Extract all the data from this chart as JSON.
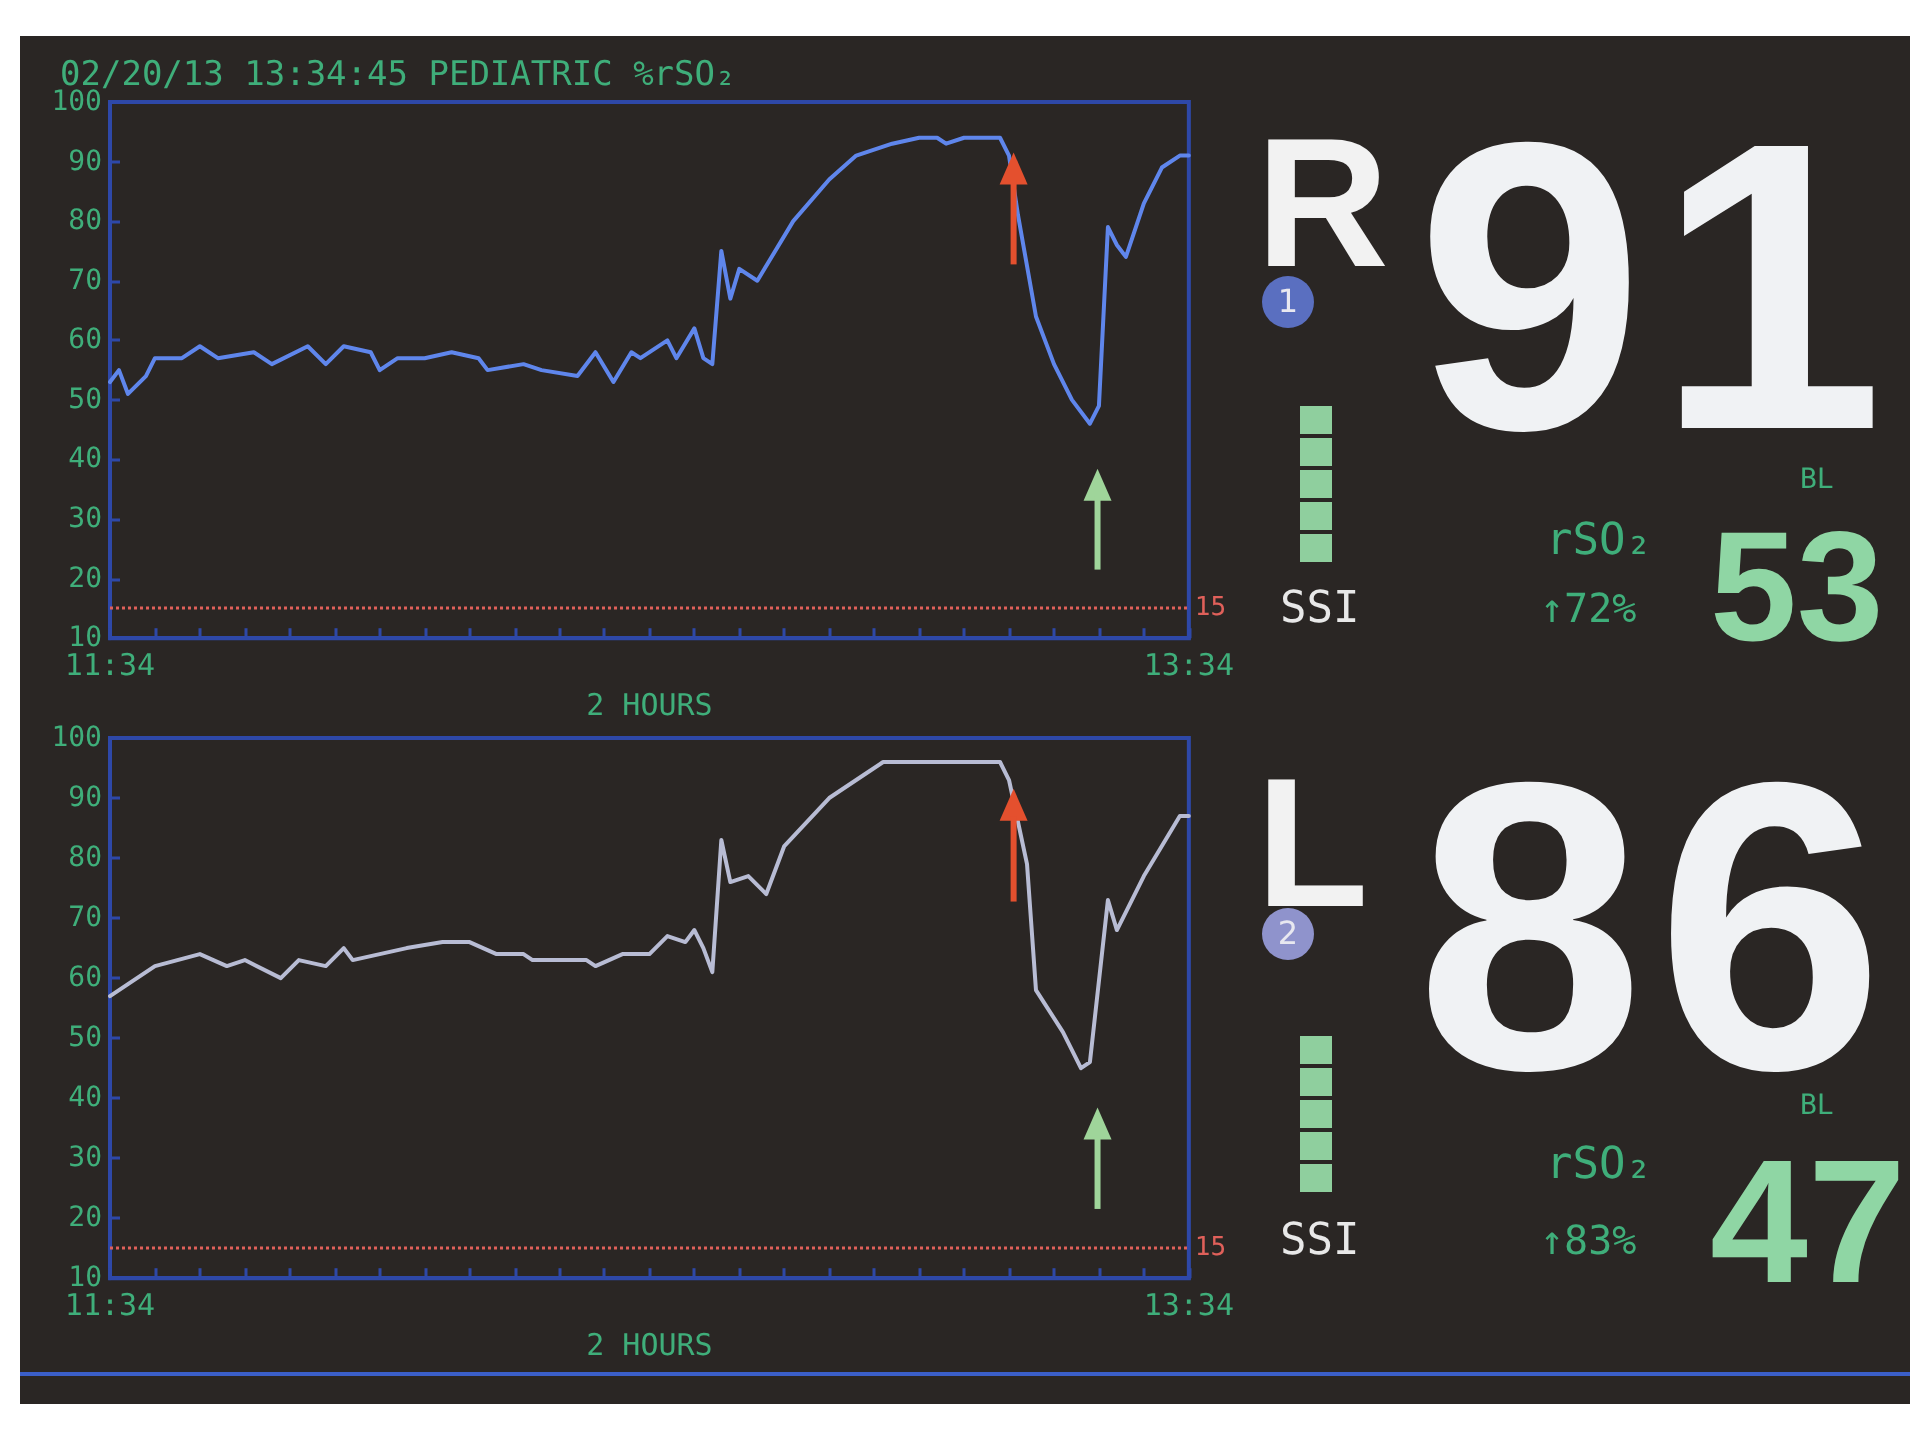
{
  "chart_data": [
    {
      "type": "line",
      "title": "02/20/13 13:34:45 PEDIATRIC %rSO₂",
      "xlabel": "2 HOURS",
      "marker": "none",
      "xlim": [
        11.5667,
        13.5667
      ],
      "xticks": [
        {
          "value": 11.5667,
          "label": "11:34"
        },
        {
          "value": 11.65,
          "label": null
        },
        {
          "value": 11.7333,
          "label": null
        },
        {
          "value": 11.8167,
          "label": null
        },
        {
          "value": 11.9,
          "label": null
        },
        {
          "value": 11.9833,
          "label": null
        },
        {
          "value": 12.0667,
          "label": null
        },
        {
          "value": 12.15,
          "label": null
        },
        {
          "value": 12.2333,
          "label": null
        },
        {
          "value": 12.3167,
          "label": null
        },
        {
          "value": 12.4,
          "label": null
        },
        {
          "value": 12.4833,
          "label": null
        },
        {
          "value": 12.5667,
          "label": null
        },
        {
          "value": 12.65,
          "label": null
        },
        {
          "value": 12.7333,
          "label": null
        },
        {
          "value": 12.8167,
          "label": null
        },
        {
          "value": 12.9,
          "label": null
        },
        {
          "value": 12.9833,
          "label": null
        },
        {
          "value": 13.0667,
          "label": null
        },
        {
          "value": 13.15,
          "label": null
        },
        {
          "value": 13.2333,
          "label": null
        },
        {
          "value": 13.3167,
          "label": null
        },
        {
          "value": 13.4,
          "label": null
        },
        {
          "value": 13.4833,
          "label": null
        },
        {
          "value": 13.5667,
          "label": "13:34"
        }
      ],
      "ylim": [
        10,
        100
      ],
      "yticks": [
        10,
        20,
        30,
        40,
        50,
        60,
        70,
        80,
        90,
        100
      ],
      "ref_lines": [
        {
          "axis": "y",
          "value": 15,
          "label": "15",
          "color": "#e0605a",
          "line_style": "dotted"
        }
      ],
      "series": [
        {
          "color": "#5f86ec",
          "x": [
            11.5667,
            11.5833,
            11.6,
            11.6333,
            11.65,
            11.7,
            11.7333,
            11.7667,
            11.8333,
            11.8667,
            11.9333,
            11.9667,
            12,
            12.05,
            12.0667,
            12.1,
            12.15,
            12.2,
            12.25,
            12.2667,
            12.3333,
            12.3667,
            12.4333,
            12.4667,
            12.5,
            12.5333,
            12.55,
            12.6,
            12.6167,
            12.65,
            12.6667,
            12.6833,
            12.7,
            12.7167,
            12.7333,
            12.7667,
            12.8333,
            12.9,
            12.95,
            13.0167,
            13.0667,
            13.1,
            13.1167,
            13.15,
            13.2167,
            13.2333,
            13.25,
            13.2833,
            13.3167,
            13.35,
            13.3833,
            13.4,
            13.4167,
            13.4333,
            13.45,
            13.4833,
            13.5167,
            13.55,
            13.5667
          ],
          "values": [
            53,
            55,
            51,
            54,
            57,
            57,
            59,
            57,
            58,
            56,
            59,
            56,
            59,
            58,
            55,
            57,
            57,
            58,
            57,
            55,
            56,
            55,
            54,
            58,
            53,
            58,
            57,
            60,
            57,
            62,
            57,
            56,
            75,
            67,
            72,
            70,
            80,
            87,
            91,
            93,
            94,
            94,
            93,
            94,
            94,
            91,
            81,
            64,
            56,
            50,
            46,
            49,
            79,
            76,
            74,
            83,
            89,
            91,
            91
          ]
        }
      ]
    },
    {
      "type": "other",
      "title": "R",
      "annotations": [
        "1",
        "91",
        "SSI",
        "rSO₂",
        "↑72%",
        "BL",
        "53"
      ]
    },
    {
      "type": "line",
      "xlabel": "2 HOURS",
      "marker": "none",
      "xlim": [
        11.5667,
        13.5667
      ],
      "xticks": [
        {
          "value": 11.5667,
          "label": "11:34"
        },
        {
          "value": 11.65,
          "label": null
        },
        {
          "value": 11.7333,
          "label": null
        },
        {
          "value": 11.8167,
          "label": null
        },
        {
          "value": 11.9,
          "label": null
        },
        {
          "value": 11.9833,
          "label": null
        },
        {
          "value": 12.0667,
          "label": null
        },
        {
          "value": 12.15,
          "label": null
        },
        {
          "value": 12.2333,
          "label": null
        },
        {
          "value": 12.3167,
          "label": null
        },
        {
          "value": 12.4,
          "label": null
        },
        {
          "value": 12.4833,
          "label": null
        },
        {
          "value": 12.5667,
          "label": null
        },
        {
          "value": 12.65,
          "label": null
        },
        {
          "value": 12.7333,
          "label": null
        },
        {
          "value": 12.8167,
          "label": null
        },
        {
          "value": 12.9,
          "label": null
        },
        {
          "value": 12.9833,
          "label": null
        },
        {
          "value": 13.0667,
          "label": null
        },
        {
          "value": 13.15,
          "label": null
        },
        {
          "value": 13.2333,
          "label": null
        },
        {
          "value": 13.3167,
          "label": null
        },
        {
          "value": 13.4,
          "label": null
        },
        {
          "value": 13.4833,
          "label": null
        },
        {
          "value": 13.5667,
          "label": "13:34"
        }
      ],
      "ylim": [
        10,
        100
      ],
      "yticks": [
        10,
        20,
        30,
        40,
        50,
        60,
        70,
        80,
        90,
        100
      ],
      "ref_lines": [
        {
          "axis": "y",
          "value": 15,
          "label": "15",
          "color": "#e0605a",
          "line_style": "dotted"
        }
      ],
      "series": [
        {
          "color": "#b8bcd4",
          "x": [
            11.5667,
            11.6,
            11.65,
            11.7333,
            11.7833,
            11.8167,
            11.8833,
            11.9167,
            11.9667,
            12,
            12.0167,
            12.0667,
            12.1167,
            12.1833,
            12.2333,
            12.2833,
            12.3333,
            12.35,
            12.45,
            12.4667,
            12.5167,
            12.5667,
            12.6,
            12.6333,
            12.65,
            12.6667,
            12.6833,
            12.7,
            12.7167,
            12.75,
            12.7833,
            12.8167,
            12.9,
            12.9667,
            13,
            13.2167,
            13.2333,
            13.2667,
            13.2833,
            13.3333,
            13.3667,
            13.3833,
            13.4167,
            13.4333,
            13.4833,
            13.5167,
            13.55,
            13.5667
          ],
          "values": [
            57,
            59,
            62,
            64,
            62,
            63,
            60,
            63,
            62,
            65,
            63,
            64,
            65,
            66,
            66,
            64,
            64,
            63,
            63,
            62,
            64,
            64,
            67,
            66,
            68,
            65,
            61,
            83,
            76,
            77,
            74,
            82,
            90,
            94,
            96,
            96,
            93,
            79,
            58,
            51,
            45,
            46,
            73,
            68,
            77,
            82,
            87,
            87
          ]
        }
      ]
    },
    {
      "type": "other",
      "title": "L",
      "annotations": [
        "2",
        "86",
        "SSI",
        "rSO₂",
        "↑83%",
        "BL",
        "47"
      ]
    }
  ]
}
